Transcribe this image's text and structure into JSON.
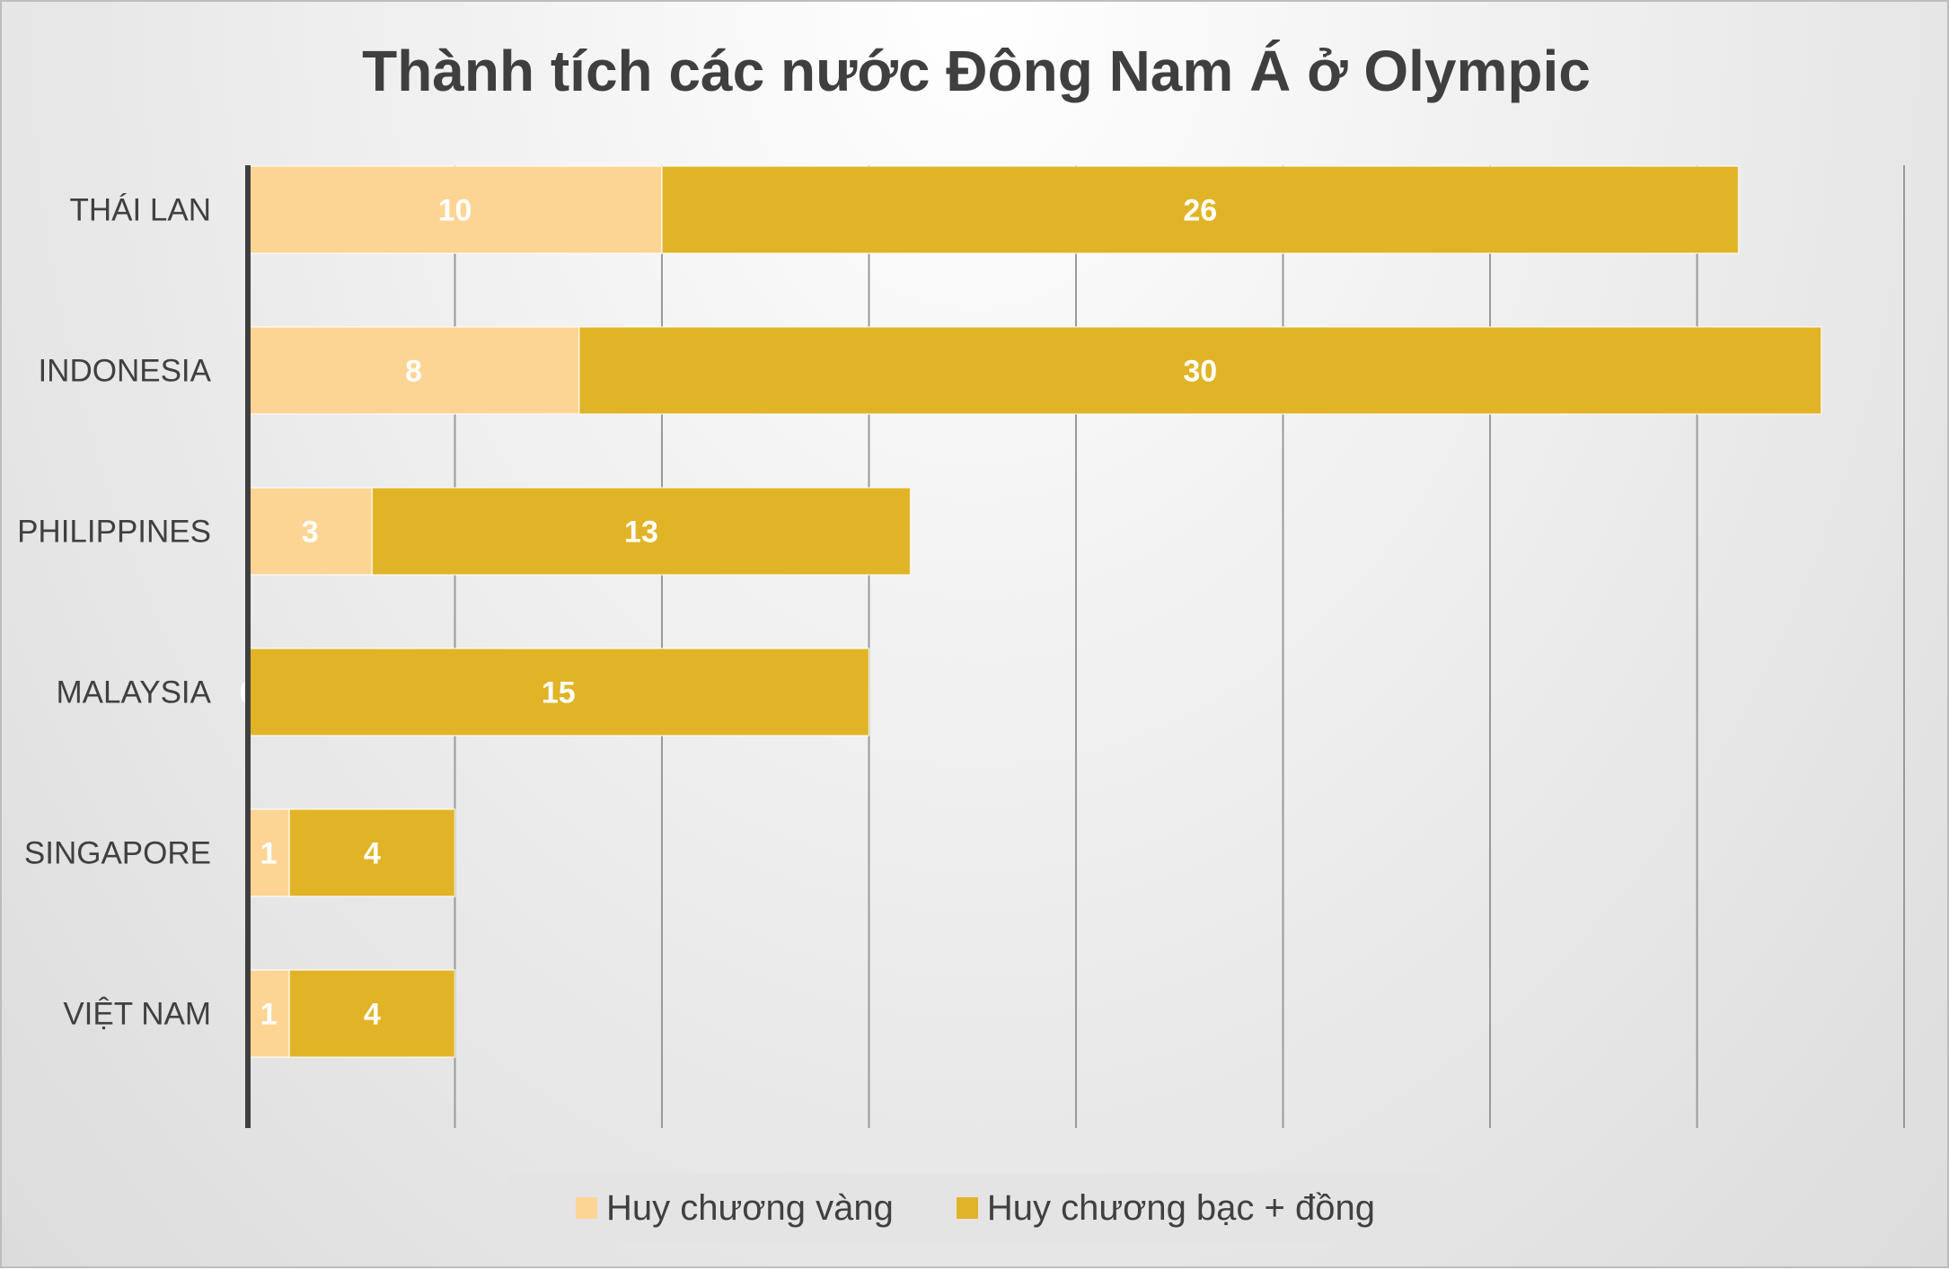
{
  "chart_data": {
    "type": "bar",
    "orientation": "horizontal",
    "stacked": true,
    "title": "Thành tích các nước Đông Nam Á ở Olympic",
    "categories": [
      "THÁI LAN",
      "INDONESIA",
      "PHILIPPINES",
      "MALAYSIA",
      "SINGAPORE",
      "VIỆT NAM"
    ],
    "series": [
      {
        "name": "Huy chương vàng",
        "color": "#fcd595",
        "values": [
          10,
          8,
          3,
          0,
          1,
          1
        ]
      },
      {
        "name": "Huy chương bạc + đồng",
        "color": "#e1b427",
        "values": [
          26,
          30,
          13,
          15,
          4,
          4
        ]
      }
    ],
    "xlim": [
      0,
      40
    ],
    "grid": true,
    "legend_position": "bottom"
  }
}
